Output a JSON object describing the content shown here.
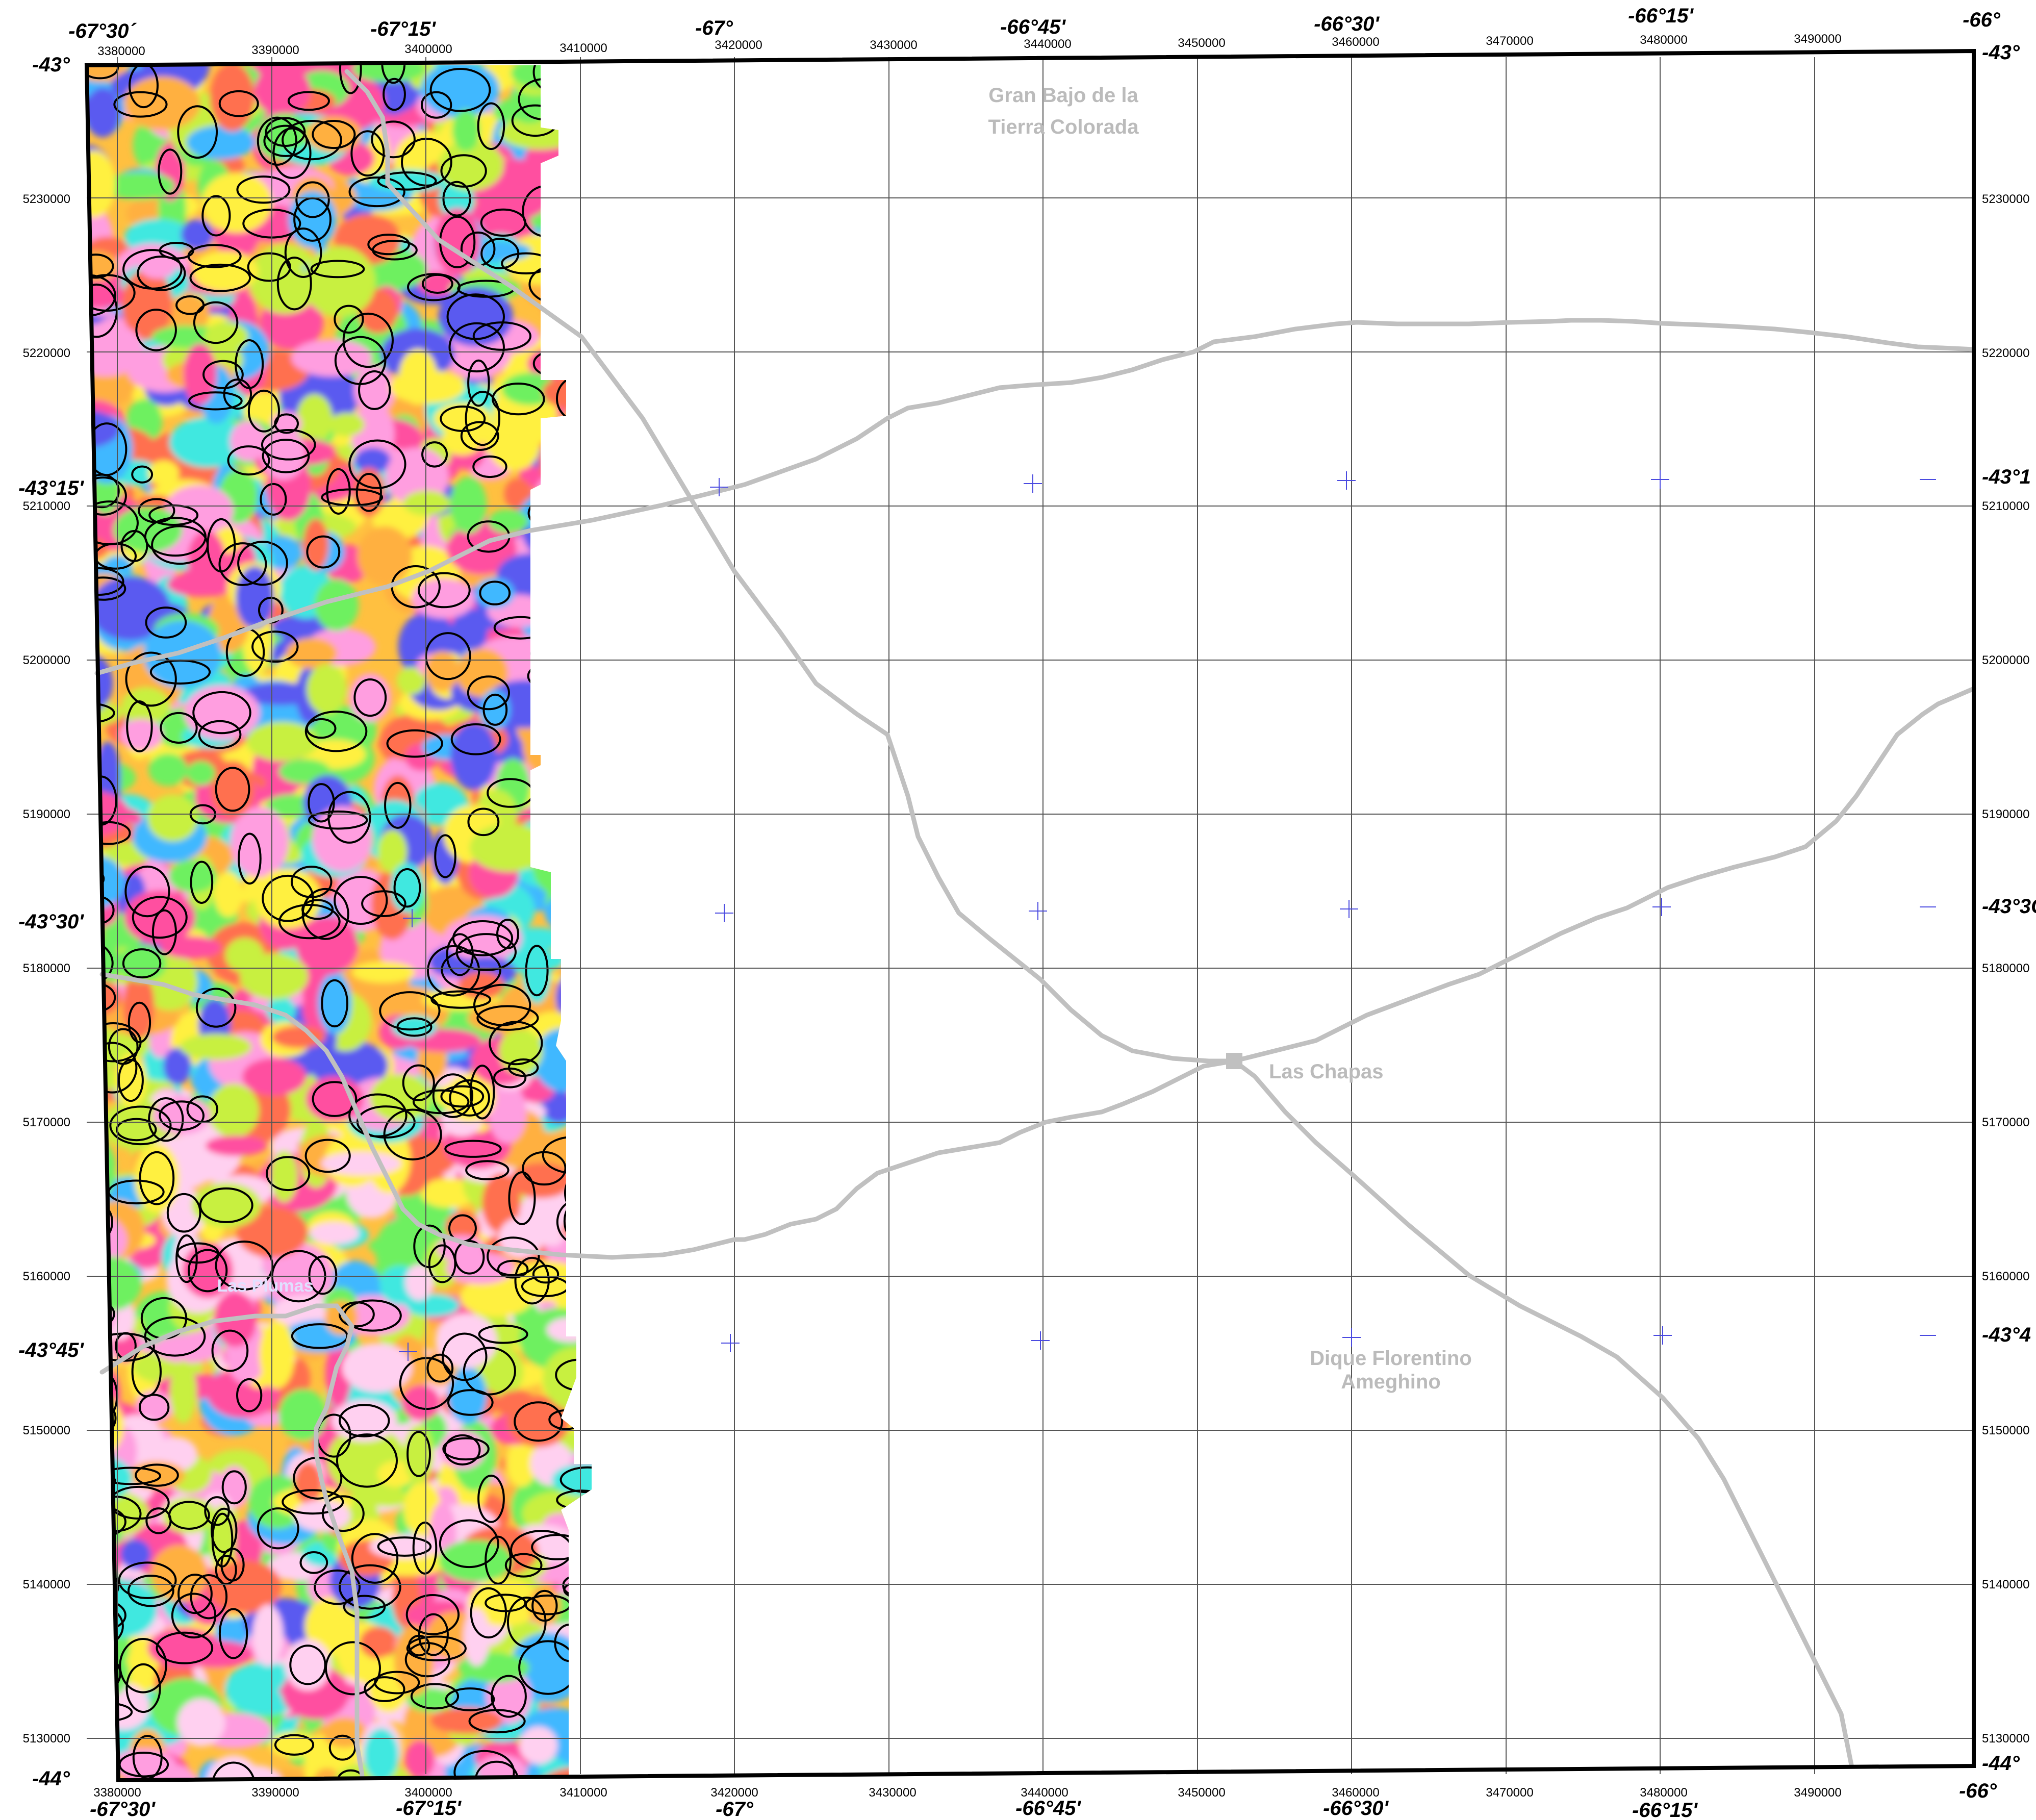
{
  "top_utm_labels": [
    "3380000",
    "3390000",
    "3400000",
    "3410000",
    "3420000",
    "3430000",
    "3440000",
    "3450000",
    "3460000",
    "3470000",
    "3480000",
    "3490000"
  ],
  "bottom_utm_labels": [
    "3380000",
    "3390000",
    "3400000",
    "3410000",
    "3420000",
    "3430000",
    "3440000",
    "3450000",
    "3460000",
    "3470000",
    "3480000",
    "3490000"
  ],
  "left_utm_labels": [
    "5230000",
    "5220000",
    "5210000",
    "5200000",
    "5190000",
    "5180000",
    "5170000",
    "5160000",
    "5150000",
    "5140000",
    "5130000"
  ],
  "right_utm_labels": [
    "5230000",
    "5220000",
    "5210000",
    "5200000",
    "5190000",
    "5180000",
    "5170000",
    "5160000",
    "5150000",
    "5140000",
    "5130000"
  ],
  "top_geo_labels": [
    "-67°30´",
    "-67°15'",
    "-67°",
    "-66°45'",
    "-66°30'",
    "-66°15'",
    "-66°"
  ],
  "bottom_geo_labels": [
    "-67°30'",
    "-67°15'",
    "-67°",
    "-66°45'",
    "-66°30'",
    "-66°15'",
    "-66°"
  ],
  "left_geo_labels": [
    "-43°",
    "-43°15'",
    "-43°30'",
    "-43°45'",
    "-44°"
  ],
  "right_geo_labels": [
    "-43°",
    "-43°1",
    "-43°3C",
    "-43°4",
    "-44°"
  ],
  "place_names": {
    "gran_bajo_line1": "Gran Bajo de la",
    "gran_bajo_line2": "Tierra Colorada",
    "las_chapas": "Las Chapas",
    "dique_line1": "Dique Florentino",
    "dique_line2": "Ameghino",
    "las_plumas": "Las Plumas"
  },
  "colors": {
    "grid": "#555555",
    "frame": "#000000",
    "roads": "#c0c0c0",
    "place_text": "#bbbbbb",
    "cross_marks": "#4a4ae0",
    "anomaly_palette": [
      "#5a5af0",
      "#40b8ff",
      "#40e8e0",
      "#6ef060",
      "#c8f040",
      "#fff040",
      "#ffb040",
      "#ff7050",
      "#ff50a0",
      "#ff9ee0",
      "#ffd0f0"
    ]
  },
  "icons": {
    "town_marker": "square-icon",
    "graticule_cross": "plus-icon"
  }
}
